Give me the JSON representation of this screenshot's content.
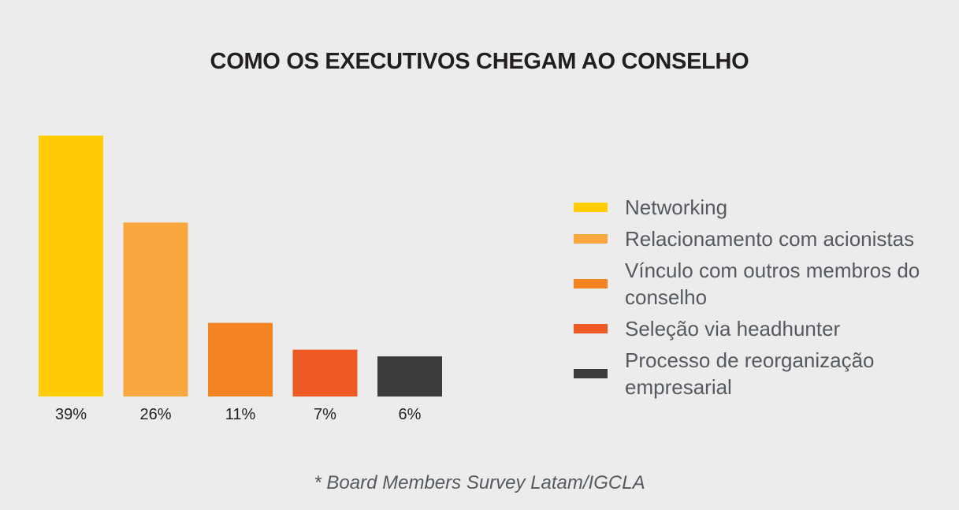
{
  "chart_data": {
    "type": "bar",
    "title": "COMO OS EXECUTIVOS CHEGAM AO CONSELHO",
    "categories": [
      "Networking",
      "Relacionamento com acionistas",
      "Vínculo com outros membros do conselho",
      "Seleção via headhunter",
      "Processo de reorganização empresarial"
    ],
    "values": [
      39,
      26,
      11,
      7,
      6
    ],
    "value_labels": [
      "39%",
      "26%",
      "11%",
      "7%",
      "6%"
    ],
    "colors": [
      "#ffcc05",
      "#f9a83f",
      "#f38220",
      "#ef5a24",
      "#3d3c3a"
    ],
    "xlabel": "",
    "ylabel": "",
    "ylim": [
      0,
      39
    ],
    "grid": false,
    "legend_position": "right"
  },
  "legend": {
    "items": [
      {
        "label": "Networking",
        "color": "#ffcc05"
      },
      {
        "label": "Relacionamento com acionistas",
        "color": "#f9a83f"
      },
      {
        "label": "Vínculo com outros membros do conselho",
        "color": "#f38220"
      },
      {
        "label": "Seleção via headhunter",
        "color": "#ef5a24"
      },
      {
        "label": "Processo de reorganização empresarial",
        "color": "#3d3c3a"
      }
    ]
  },
  "footnote": "* Board Members Survey Latam/IGCLA"
}
